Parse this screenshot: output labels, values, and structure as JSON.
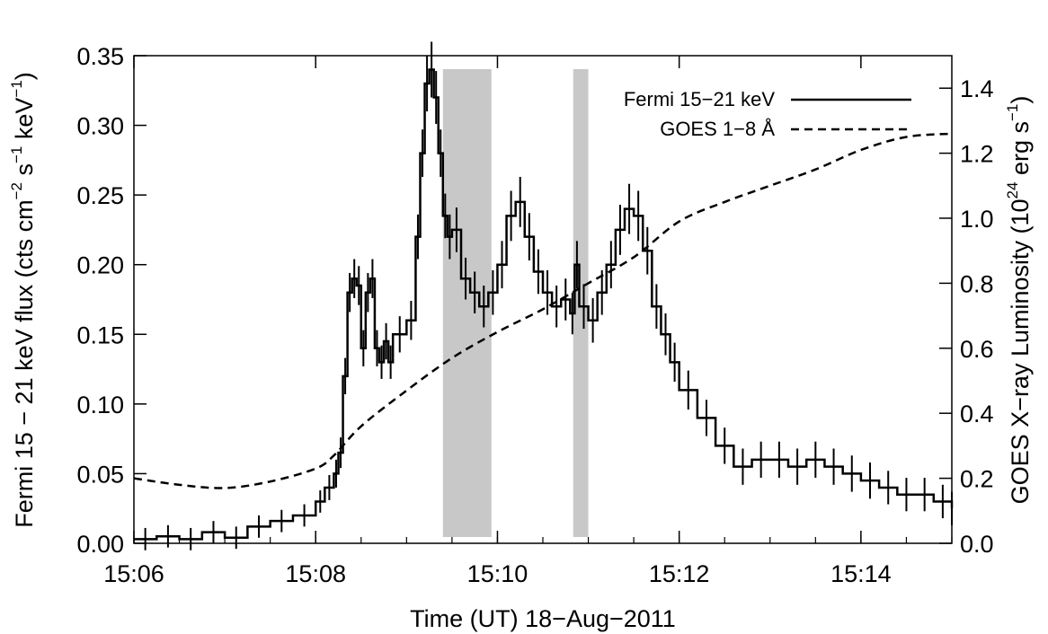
{
  "chart_data": {
    "type": "line",
    "xlabel": "Time (UT) 18−Aug−2011",
    "ylabel_left": {
      "main": "Fermi 15 − 21 keV flux (cts cm",
      "e1": "−2",
      "mid": " s",
      "e2": "−1",
      "mid2": " keV",
      "e3": "−1",
      "end": ")"
    },
    "ylabel_right": {
      "main": "GOES X−ray Luminosity (10",
      "e1": "24",
      "mid": " erg s",
      "e2": "−1",
      "end": ")"
    },
    "xlim": [
      15.1,
      15.25
    ],
    "ylim_left": [
      0.0,
      0.35
    ],
    "ylim_right": [
      0.0,
      1.5
    ],
    "x_ticks": [
      {
        "value": 15.1,
        "label": "15:06"
      },
      {
        "value": 15.13333,
        "label": "15:08"
      },
      {
        "value": 15.16667,
        "label": "15:10"
      },
      {
        "value": 15.2,
        "label": "15:12"
      },
      {
        "value": 15.23333,
        "label": "15:14"
      }
    ],
    "y_ticks_left": [
      "0.00",
      "0.05",
      "0.10",
      "0.15",
      "0.20",
      "0.25",
      "0.30",
      "0.35"
    ],
    "y_ticks_right": [
      "0.0",
      "0.2",
      "0.4",
      "0.6",
      "0.8",
      "1.0",
      "1.2",
      "1.4"
    ],
    "shaded_intervals": [
      [
        15.15667,
        15.16556
      ],
      [
        15.18056,
        15.18333
      ]
    ],
    "legend": {
      "position": "top-right",
      "entries": [
        {
          "label": "Fermi 15−21 keV",
          "style": "solid"
        },
        {
          "label": "GOES 1−8 Å",
          "style": "dashed"
        }
      ]
    },
    "series": [
      {
        "name": "Fermi 15−21 keV",
        "axis": "left",
        "style": "solid-step-with-errorbars",
        "x_min": [
          6.0,
          6.25,
          6.5,
          6.75,
          7.0,
          7.25,
          7.5,
          7.75,
          8.0,
          8.1,
          8.2,
          8.25,
          8.3,
          8.35,
          8.4,
          8.45,
          8.5,
          8.55,
          8.6,
          8.65,
          8.7,
          8.75,
          8.8,
          8.85,
          9.0,
          9.1,
          9.15,
          9.2,
          9.25,
          9.3,
          9.35,
          9.4,
          9.45,
          9.5,
          9.6,
          9.7,
          9.8,
          9.9,
          10.0,
          10.1,
          10.2,
          10.3,
          10.4,
          10.5,
          10.6,
          10.7,
          10.8,
          10.85,
          10.9,
          11.0,
          11.1,
          11.2,
          11.3,
          11.4,
          11.5,
          11.6,
          11.7,
          11.8,
          11.9,
          12.0,
          12.2,
          12.4,
          12.6,
          12.8,
          13.0,
          13.2,
          13.4,
          13.6,
          13.8,
          14.0,
          14.2,
          14.4,
          14.6,
          14.8,
          15.0
        ],
        "values": [
          0.003,
          0.005,
          0.003,
          0.008,
          0.004,
          0.012,
          0.016,
          0.02,
          0.03,
          0.04,
          0.05,
          0.065,
          0.12,
          0.18,
          0.19,
          0.185,
          0.14,
          0.18,
          0.19,
          0.14,
          0.13,
          0.145,
          0.13,
          0.15,
          0.16,
          0.22,
          0.28,
          0.33,
          0.34,
          0.32,
          0.28,
          0.235,
          0.22,
          0.225,
          0.19,
          0.18,
          0.17,
          0.18,
          0.2,
          0.235,
          0.245,
          0.22,
          0.195,
          0.18,
          0.17,
          0.175,
          0.165,
          0.2,
          0.17,
          0.16,
          0.18,
          0.2,
          0.225,
          0.24,
          0.235,
          0.21,
          0.17,
          0.15,
          0.13,
          0.11,
          0.09,
          0.07,
          0.055,
          0.06,
          0.06,
          0.055,
          0.06,
          0.055,
          0.05,
          0.045,
          0.04,
          0.035,
          0.035,
          0.03,
          0.025
        ],
        "err": [
          0.008,
          0.008,
          0.008,
          0.008,
          0.008,
          0.008,
          0.008,
          0.008,
          0.008,
          0.009,
          0.01,
          0.011,
          0.013,
          0.014,
          0.014,
          0.014,
          0.013,
          0.014,
          0.014,
          0.013,
          0.012,
          0.013,
          0.012,
          0.013,
          0.014,
          0.016,
          0.017,
          0.02,
          0.02,
          0.019,
          0.017,
          0.016,
          0.016,
          0.016,
          0.015,
          0.015,
          0.015,
          0.016,
          0.017,
          0.018,
          0.018,
          0.017,
          0.016,
          0.016,
          0.015,
          0.015,
          0.015,
          0.017,
          0.016,
          0.016,
          0.016,
          0.017,
          0.018,
          0.018,
          0.018,
          0.017,
          0.016,
          0.015,
          0.014,
          0.014,
          0.013,
          0.013,
          0.013,
          0.013,
          0.013,
          0.013,
          0.013,
          0.013,
          0.013,
          0.013,
          0.012,
          0.012,
          0.012,
          0.012,
          0.012
        ]
      },
      {
        "name": "GOES 1−8 Å",
        "axis": "right",
        "style": "dashed",
        "x_min": [
          6.0,
          6.5,
          7.0,
          7.5,
          8.0,
          8.2,
          8.5,
          9.0,
          9.5,
          10.0,
          10.5,
          11.0,
          11.5,
          12.0,
          12.5,
          13.0,
          13.5,
          14.0,
          14.5,
          15.0
        ],
        "values": [
          0.2,
          0.18,
          0.17,
          0.19,
          0.23,
          0.27,
          0.36,
          0.47,
          0.57,
          0.65,
          0.72,
          0.8,
          0.88,
          0.99,
          1.05,
          1.1,
          1.15,
          1.21,
          1.25,
          1.26
        ]
      }
    ]
  }
}
